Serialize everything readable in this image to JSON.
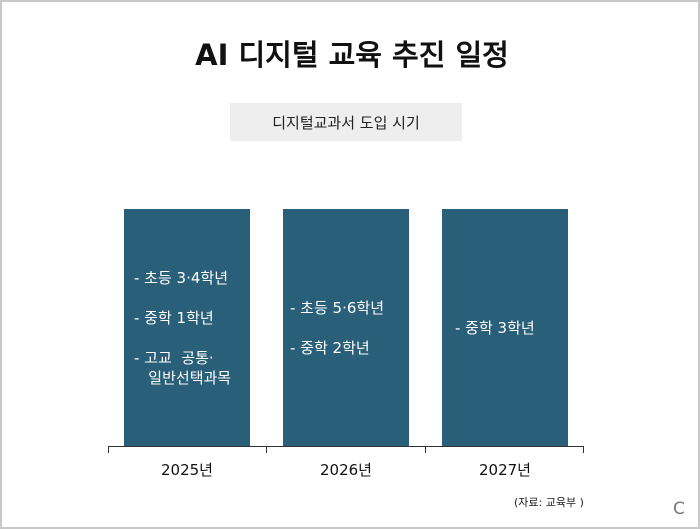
{
  "title": "AI 디지털 교육 추진 일정",
  "subtitle": "디지털교과서 도입 시기",
  "chart_data": {
    "type": "table",
    "categories": [
      "2025년",
      "2026년",
      "2027년"
    ],
    "columns": [
      {
        "year": "2025년",
        "items": [
          "- 초등 3·4학년",
          "- 중학 1학년",
          "- 고교  공통·\n   일반선택과목"
        ]
      },
      {
        "year": "2026년",
        "items": [
          "- 초등 5·6학년",
          "- 중학 2학년"
        ]
      },
      {
        "year": "2027년",
        "items": [
          "- 중학 3학년"
        ]
      }
    ],
    "bar_color": "#2a5f7a"
  },
  "source": "(자료: 교육부 )",
  "corner_mark": "C"
}
